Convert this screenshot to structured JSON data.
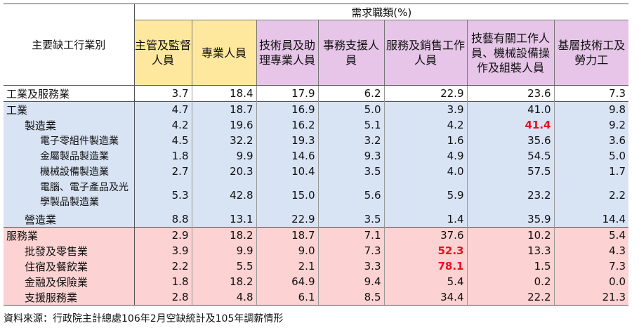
{
  "table": {
    "industry_header": "主要缺工行業別",
    "group_header": "需求職類(%)",
    "categories": [
      {
        "label": "主管及監督人員",
        "color": "#fee89d"
      },
      {
        "label": "專業人員",
        "color": "#fee89d"
      },
      {
        "label": "技術員及助理專業人員",
        "color": "#e6c5e8"
      },
      {
        "label": "事務支援人員",
        "color": "#e6c5e8"
      },
      {
        "label": "服務及銷售工作人員",
        "color": "#e6c5e8"
      },
      {
        "label": "技藝有關工作人員、機械設備操作及組裝人員",
        "color": "#e6c5e8"
      },
      {
        "label": "基層技術工及勞力工",
        "color": "#e6c5e8"
      }
    ],
    "rows": [
      {
        "name": "工業及服務業",
        "values": [
          "3.7",
          "18.4",
          "17.9",
          "6.2",
          "22.9",
          "23.6",
          "7.3"
        ]
      },
      {
        "name": "工業",
        "values": [
          "4.7",
          "18.7",
          "16.9",
          "5.0",
          "3.9",
          "41.0",
          "9.8"
        ]
      },
      {
        "name": "製造業",
        "values": [
          "4.2",
          "19.6",
          "16.2",
          "5.1",
          "4.2",
          "41.4",
          "9.2"
        ]
      },
      {
        "name": "電子零組件製造業",
        "values": [
          "4.5",
          "32.2",
          "19.3",
          "3.2",
          "1.6",
          "35.6",
          "3.6"
        ]
      },
      {
        "name": "金屬製品製造業",
        "values": [
          "1.8",
          "9.9",
          "14.6",
          "9.3",
          "4.9",
          "54.5",
          "5.0"
        ]
      },
      {
        "name": "機械設備製造業",
        "values": [
          "2.7",
          "20.3",
          "10.4",
          "3.5",
          "4.0",
          "57.5",
          "1.7"
        ]
      },
      {
        "name": "電腦、電子產品及光學製品製造業",
        "values": [
          "5.3",
          "42.8",
          "15.0",
          "5.6",
          "5.9",
          "23.2",
          "2.2"
        ]
      },
      {
        "name": "營造業",
        "values": [
          "8.8",
          "13.1",
          "22.9",
          "3.5",
          "1.4",
          "35.9",
          "14.4"
        ]
      },
      {
        "name": "服務業",
        "values": [
          "2.9",
          "18.2",
          "18.7",
          "7.1",
          "37.6",
          "10.2",
          "5.4"
        ]
      },
      {
        "name": "批發及零售業",
        "values": [
          "3.9",
          "9.9",
          "9.0",
          "7.3",
          "52.3",
          "13.3",
          "4.3"
        ]
      },
      {
        "name": "住宿及餐飲業",
        "values": [
          "2.2",
          "5.5",
          "2.1",
          "3.3",
          "78.1",
          "1.5",
          "7.3"
        ]
      },
      {
        "name": "金融及保險業",
        "values": [
          "1.8",
          "18.2",
          "64.9",
          "9.4",
          "5.4",
          "0.2",
          "0.0"
        ]
      },
      {
        "name": "支援服務業",
        "values": [
          "2.8",
          "4.8",
          "6.1",
          "8.5",
          "34.4",
          "22.2",
          "21.3"
        ]
      }
    ],
    "section_colors": {
      "total": "#ffffff",
      "industry": "#d8e3f4",
      "services": "#fcd2d2"
    },
    "highlight_color": "#e8101c"
  },
  "source_note": "資料來源：行政院主計總處106年2月空缺統計及105年調薪情形"
}
